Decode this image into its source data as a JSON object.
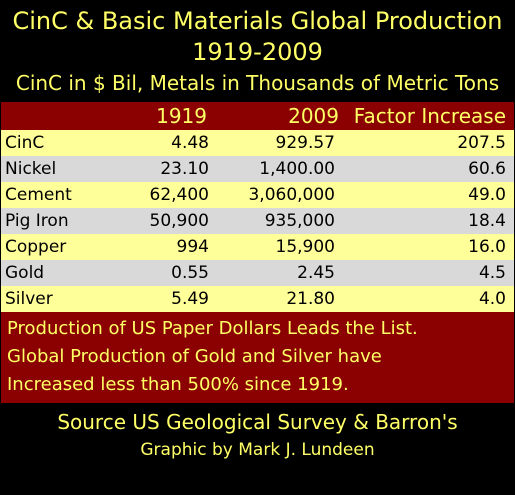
{
  "title": "CinC & Basic Materials Global Production",
  "subtitle": "1919-2009",
  "units_note": "CinC in $ Bil, Metals in Thousands of Metric Tons",
  "colors": {
    "background": "#000000",
    "header_text": "#ffff66",
    "band": "#8b0000",
    "row_odd": "#ffff99",
    "row_even": "#d9d9d9"
  },
  "chart_data": {
    "type": "table",
    "columns": [
      "",
      "1919",
      "2009",
      "Factor Increase"
    ],
    "rows": [
      [
        "CinC",
        "4.48",
        "929.57",
        "207.5"
      ],
      [
        "Nickel",
        "23.10",
        "1,400.00",
        "60.6"
      ],
      [
        "Cement",
        "62,400",
        "3,060,000",
        "49.0"
      ],
      [
        "Pig Iron",
        "50,900",
        "935,000",
        "18.4"
      ],
      [
        "Copper",
        "994",
        "15,900",
        "16.0"
      ],
      [
        "Gold",
        "0.55",
        "2.45",
        "4.5"
      ],
      [
        "Silver",
        "5.49",
        "21.80",
        "4.0"
      ]
    ]
  },
  "note_lines": [
    "Production of US Paper Dollars Leads the List.",
    "Global Production of Gold and Silver have",
    "Increased less than 500% since 1919."
  ],
  "source": "Source US Geological Survey & Barron's",
  "credit": "Graphic by Mark J. Lundeen"
}
